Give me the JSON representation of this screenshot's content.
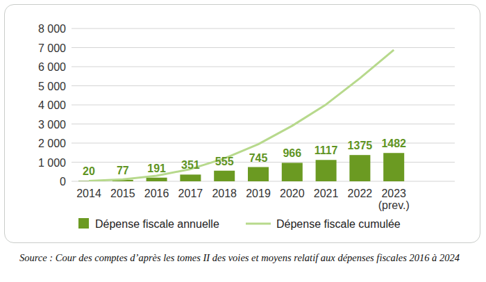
{
  "chart_data": {
    "type": "bar",
    "categories": [
      "2014",
      "2015",
      "2016",
      "2017",
      "2018",
      "2019",
      "2020",
      "2021",
      "2022",
      "2023 (prev.)"
    ],
    "series": [
      {
        "name": "Dépense fiscale annuelle",
        "type": "bar",
        "color": "#6b9a22",
        "values": [
          20,
          77,
          191,
          351,
          555,
          745,
          966,
          1117,
          1375,
          1482
        ]
      },
      {
        "name": "Dépense fiscale cumulée",
        "type": "line",
        "color": "#b7d98c",
        "values": [
          20,
          97,
          288,
          639,
          1194,
          1939,
          2905,
          4022,
          5397,
          6879
        ]
      }
    ],
    "ylim": [
      0,
      8000
    ],
    "yticks": [
      0,
      {
        "value": 1000,
        "label": "1 000"
      },
      {
        "value": 2000,
        "label": "2 000"
      },
      {
        "value": 3000,
        "label": "3 000"
      },
      {
        "value": 4000,
        "label": "4 000"
      },
      {
        "value": 5000,
        "label": "5 000"
      },
      {
        "value": 6000,
        "label": "6 000"
      },
      {
        "value": 7000,
        "label": "7 000"
      },
      {
        "value": 8000,
        "label": "8 000"
      }
    ],
    "grid": true,
    "data_labels": true,
    "legend": "bottom",
    "source": "Source : Cour des comptes d’après les tomes II des voies et moyens relatif aux dépenses fiscales 2016 à 2024"
  }
}
